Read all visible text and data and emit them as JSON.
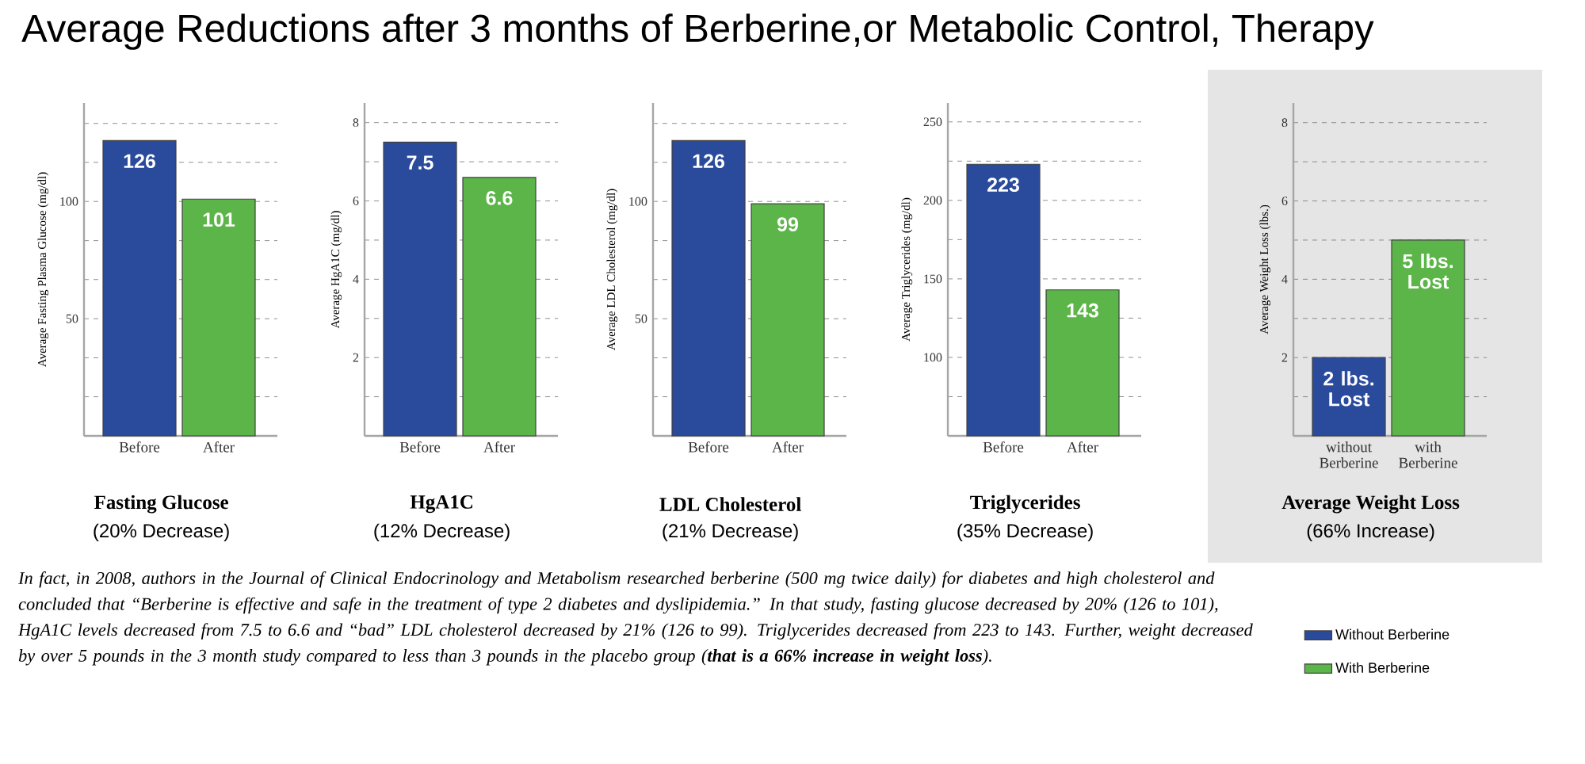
{
  "chart_data": [
    {
      "type": "bar",
      "title": "Fasting Glucose",
      "subtitle": "(20% Decrease)",
      "ylabel": "Average Fasting Plasma Glucose (mg/dl)",
      "categories": [
        "Before",
        "After"
      ],
      "values": [
        126,
        101
      ],
      "colors": [
        "#2a4a9c",
        "#5cb548"
      ],
      "ylim": [
        0,
        142
      ],
      "yticks": [
        {
          "value": 16.7,
          "label": null
        },
        {
          "value": 33.3,
          "label": null
        },
        50,
        {
          "value": 66.7,
          "label": null
        },
        {
          "value": 83.3,
          "label": null
        },
        100,
        {
          "value": 116.7,
          "label": null
        },
        {
          "value": 133.3,
          "label": null
        }
      ],
      "grid": "y",
      "data_labels": true
    },
    {
      "type": "bar",
      "title": "HgA1C",
      "subtitle": "(12% Decrease)",
      "ylabel": "Average HgA1C (mg/dl)",
      "categories": [
        "Before",
        "After"
      ],
      "values": [
        7.5,
        6.6
      ],
      "colors": [
        "#2a4a9c",
        "#5cb548"
      ],
      "ylim": [
        0,
        8.5
      ],
      "yticks": [
        {
          "value": 1,
          "label": null
        },
        2,
        {
          "value": 3,
          "label": null
        },
        4,
        {
          "value": 5,
          "label": null
        },
        6,
        {
          "value": 7,
          "label": null
        },
        8
      ],
      "grid": "y",
      "data_labels": true
    },
    {
      "type": "bar",
      "title": "LDL Cholesterol",
      "subtitle": "(21% Decrease)",
      "ylabel": "Average LDL Cholesterol (mg/dl)",
      "categories": [
        "Before",
        "After"
      ],
      "values": [
        126,
        99
      ],
      "colors": [
        "#2a4a9c",
        "#5cb548"
      ],
      "ylim": [
        0,
        142
      ],
      "yticks": [
        {
          "value": 16.7,
          "label": null
        },
        {
          "value": 33.3,
          "label": null
        },
        50,
        {
          "value": 66.7,
          "label": null
        },
        {
          "value": 83.3,
          "label": null
        },
        100,
        {
          "value": 116.7,
          "label": null
        },
        {
          "value": 133.3,
          "label": null
        }
      ],
      "grid": "y",
      "data_labels": true
    },
    {
      "type": "bar",
      "title": "Triglycerides",
      "subtitle": "(35% Decrease)",
      "ylabel": "Average Triglycerides (mg/dl)",
      "categories": [
        "Before",
        "After"
      ],
      "values": [
        223,
        143
      ],
      "colors": [
        "#2a4a9c",
        "#5cb548"
      ],
      "ylim": [
        50,
        262
      ],
      "yticks": [
        {
          "value": 75,
          "label": null
        },
        100,
        {
          "value": 125,
          "label": null
        },
        150,
        {
          "value": 175,
          "label": null
        },
        200,
        {
          "value": 225,
          "label": null
        },
        250
      ],
      "grid": "y",
      "data_labels": true
    },
    {
      "type": "bar",
      "title": "Average Weight Loss",
      "subtitle": "(66% Increase)",
      "ylabel": "Average Weight Loss (lbs.)",
      "categories": [
        "without Berberine",
        "with Berberine"
      ],
      "series": [
        {
          "name": "Without Berberine",
          "color": "#2a4a9c",
          "values": [
            2,
            null
          ],
          "value_labels": [
            "2 lbs. Lost",
            null
          ]
        },
        {
          "name": "With Berberine",
          "color": "#5cb548",
          "values": [
            null,
            5
          ],
          "value_labels": [
            null,
            "5 lbs. Lost"
          ]
        }
      ],
      "ylim": [
        0,
        8.5
      ],
      "yticks": [
        {
          "value": 1,
          "label": null
        },
        2,
        {
          "value": 3,
          "label": null
        },
        4,
        {
          "value": 5,
          "label": null
        },
        6,
        {
          "value": 7,
          "label": null
        },
        8
      ],
      "grid": "y",
      "legend": "bottom"
    },
    {
      "type": "other",
      "title": "Average Reductions after 3 months of Berberine,or Metabolic Control, Therapy",
      "annotations": [
        "In fact, in 2008, authors in the Journal of Clinical Endocrinology and Metabolism researched berberine (500 mg twice daily) for diabetes and high cholesterol and concluded that “Berberine is effective and safe in the treatment of type 2 diabetes and dyslipidemia.” In that study, fasting glucose decreased by 20% (126 to 101), HgA1C levels decreased from 7.5 to 6.6 and “bad” LDL cholesterol decreased by 21% (126 to 99). Triglycerides decreased from 223 to 143. Further, weight decreased by over 5 pounds in the 3 month study compared to less than 3 pounds in the placebo group (**that is a 66% increase in weight loss**)."
      ]
    }
  ]
}
